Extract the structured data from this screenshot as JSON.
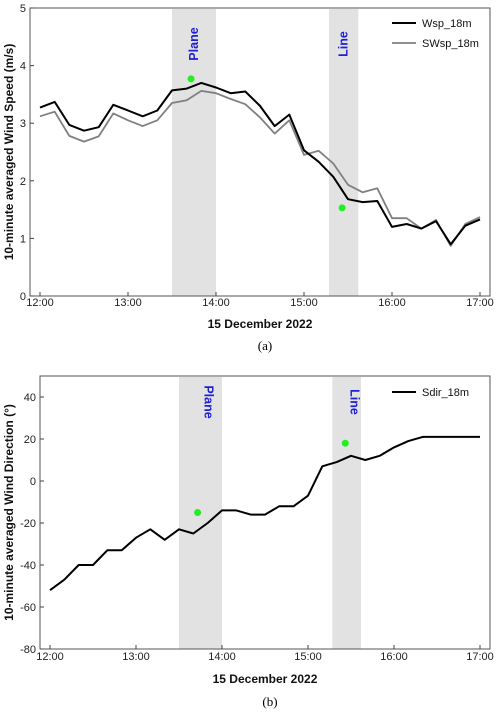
{
  "chart_data": [
    {
      "type": "line",
      "caption": "(a)",
      "xlabel": "15 December 2022",
      "ylabel": "10-minute averaged Wind Speed (m/s)",
      "xlim": [
        "12:00",
        "17:00"
      ],
      "ylim": [
        0,
        5
      ],
      "x_ticks": [
        "12:00",
        "13:00",
        "14:00",
        "15:00",
        "16:00",
        "17:00"
      ],
      "y_ticks": [
        0,
        1,
        2,
        3,
        4,
        5
      ],
      "grid": false,
      "legend_position": "top-right",
      "bands": [
        {
          "label": "Plane",
          "start": "13:30",
          "end": "14:00"
        },
        {
          "label": "Line",
          "start": "15:17",
          "end": "15:37"
        }
      ],
      "series": [
        {
          "name": "Wsp_18m",
          "color": "#000000",
          "x": [
            "12:00",
            "12:10",
            "12:20",
            "12:30",
            "12:40",
            "12:50",
            "13:00",
            "13:10",
            "13:20",
            "13:30",
            "13:40",
            "13:50",
            "14:00",
            "14:10",
            "14:20",
            "14:30",
            "14:40",
            "14:50",
            "15:00",
            "15:10",
            "15:20",
            "15:30",
            "15:40",
            "15:50",
            "16:00",
            "16:10",
            "16:20",
            "16:30",
            "16:40",
            "16:50",
            "17:00"
          ],
          "values": [
            3.27,
            3.37,
            2.97,
            2.87,
            2.93,
            3.32,
            3.22,
            3.12,
            3.22,
            3.57,
            3.6,
            3.7,
            3.62,
            3.52,
            3.55,
            3.3,
            2.95,
            3.15,
            2.53,
            2.33,
            2.07,
            1.68,
            1.63,
            1.65,
            1.2,
            1.25,
            1.17,
            1.3,
            0.9,
            1.22,
            1.33
          ]
        },
        {
          "name": "SWsp_18m",
          "color": "#808080",
          "x": [
            "12:00",
            "12:10",
            "12:20",
            "12:30",
            "12:40",
            "12:50",
            "13:00",
            "13:10",
            "13:20",
            "13:30",
            "13:40",
            "13:50",
            "14:00",
            "14:10",
            "14:20",
            "14:30",
            "14:40",
            "14:50",
            "15:00",
            "15:10",
            "15:20",
            "15:30",
            "15:40",
            "15:50",
            "16:00",
            "16:10",
            "16:20",
            "16:30",
            "16:40",
            "16:50",
            "17:00"
          ],
          "values": [
            3.12,
            3.2,
            2.78,
            2.68,
            2.77,
            3.17,
            3.05,
            2.95,
            3.05,
            3.35,
            3.4,
            3.56,
            3.52,
            3.42,
            3.33,
            3.1,
            2.82,
            3.05,
            2.45,
            2.52,
            2.3,
            1.93,
            1.8,
            1.87,
            1.35,
            1.35,
            1.17,
            1.32,
            0.87,
            1.25,
            1.37
          ]
        }
      ],
      "markers": [
        {
          "x": "13:43",
          "y": 3.77,
          "color": "#22ee22"
        },
        {
          "x": "15:26",
          "y": 1.53,
          "color": "#22ee22"
        }
      ]
    },
    {
      "type": "line",
      "caption": "(b)",
      "xlabel": "15 December 2022",
      "ylabel": "10-minute averaged Wind Direction (°)",
      "xlim": [
        "12:00",
        "17:00"
      ],
      "ylim": [
        -80,
        50
      ],
      "x_ticks": [
        "12:00",
        "13:00",
        "14:00",
        "15:00",
        "16:00",
        "17:00"
      ],
      "y_ticks": [
        -80,
        -60,
        -40,
        -20,
        0,
        20,
        40
      ],
      "grid": false,
      "legend_position": "top-right",
      "bands": [
        {
          "label": "Plane",
          "start": "13:30",
          "end": "14:00"
        },
        {
          "label": "Line",
          "start": "15:17",
          "end": "15:37"
        }
      ],
      "series": [
        {
          "name": "Sdir_18m",
          "color": "#000000",
          "x": [
            "12:00",
            "12:10",
            "12:20",
            "12:30",
            "12:40",
            "12:50",
            "13:00",
            "13:10",
            "13:20",
            "13:30",
            "13:40",
            "13:50",
            "14:00",
            "14:10",
            "14:20",
            "14:30",
            "14:40",
            "14:50",
            "15:00",
            "15:10",
            "15:20",
            "15:30",
            "15:40",
            "15:50",
            "16:00",
            "16:10",
            "16:20",
            "16:30",
            "16:40",
            "16:50",
            "17:00"
          ],
          "values": [
            -52,
            -47,
            -40,
            -40,
            -33,
            -33,
            -27,
            -23,
            -28,
            -23,
            -25,
            -20,
            -14,
            -14,
            -16,
            -16,
            -12,
            -12,
            -7,
            7,
            9,
            12,
            10,
            12,
            16,
            19,
            21,
            21,
            21,
            21,
            21
          ]
        }
      ],
      "markers": [
        {
          "x": "13:43",
          "y": -15,
          "color": "#22ee22"
        },
        {
          "x": "15:26",
          "y": 18,
          "color": "#22ee22"
        }
      ]
    }
  ]
}
